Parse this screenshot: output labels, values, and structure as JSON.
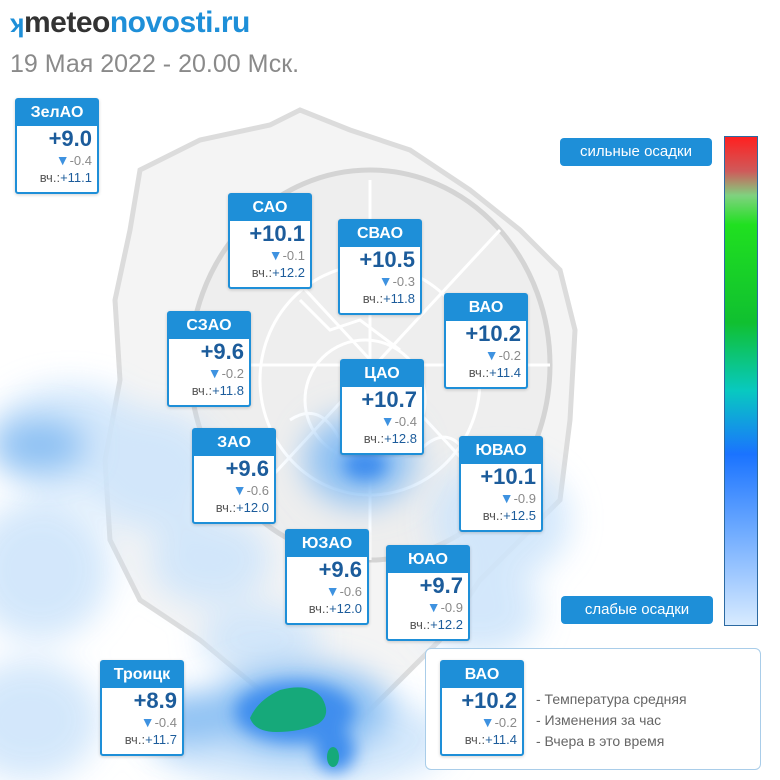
{
  "header": {
    "logo_mark": "ʞ",
    "logo_part1": "meteo",
    "logo_part2": "novosti.ru",
    "subtitle": "19 Мая 2022 - 20.00 Мск."
  },
  "districts": {
    "zelao": {
      "name": "ЗелАО",
      "temp": "+9.0",
      "change": "-0.4",
      "yest_label": "вч.:",
      "yesterday": "+11.1"
    },
    "sao": {
      "name": "САО",
      "temp": "+10.1",
      "change": "-0.1",
      "yest_label": "вч.:",
      "yesterday": "+12.2"
    },
    "svao": {
      "name": "СВАО",
      "temp": "+10.5",
      "change": "-0.3",
      "yest_label": "вч.:",
      "yesterday": "+11.8"
    },
    "vao": {
      "name": "ВАО",
      "temp": "+10.2",
      "change": "-0.2",
      "yest_label": "вч.:",
      "yesterday": "+11.4"
    },
    "szao": {
      "name": "СЗАО",
      "temp": "+9.6",
      "change": "-0.2",
      "yest_label": "вч.:",
      "yesterday": "+11.8"
    },
    "cao": {
      "name": "ЦАО",
      "temp": "+10.7",
      "change": "-0.4",
      "yest_label": "вч.:",
      "yesterday": "+12.8"
    },
    "zao": {
      "name": "ЗАО",
      "temp": "+9.6",
      "change": "-0.6",
      "yest_label": "вч.:",
      "yesterday": "+12.0"
    },
    "yuvao": {
      "name": "ЮВАО",
      "temp": "+10.1",
      "change": "-0.9",
      "yest_label": "вч.:",
      "yesterday": "+12.5"
    },
    "yuzao": {
      "name": "ЮЗАО",
      "temp": "+9.6",
      "change": "-0.6",
      "yest_label": "вч.:",
      "yesterday": "+12.0"
    },
    "yuao": {
      "name": "ЮАО",
      "temp": "+9.7",
      "change": "-0.9",
      "yest_label": "вч.:",
      "yesterday": "+12.2"
    },
    "troitsk": {
      "name": "Троицк",
      "temp": "+8.9",
      "change": "-0.4",
      "yest_label": "вч.:",
      "yesterday": "+11.7"
    }
  },
  "scale": {
    "top_label": "сильные осадки",
    "bottom_label": "слабые осадки",
    "colors": [
      "#ff2020",
      "#20e020",
      "#08c9c0",
      "#1a73ff",
      "#d8ebff"
    ]
  },
  "legend": {
    "sample": {
      "name": "ВАО",
      "temp": "+10.2",
      "change": "-0.2",
      "yest_label": "вч.:",
      "yesterday": "+11.4"
    },
    "items": [
      "- Температура средняя",
      "- Изменения за час",
      "- Вчера в это время"
    ]
  },
  "icons": {
    "change_arrow": "triangle-down-icon"
  },
  "colors": {
    "accent": "#1e8fd8",
    "temp_text": "#1c5c9b"
  }
}
